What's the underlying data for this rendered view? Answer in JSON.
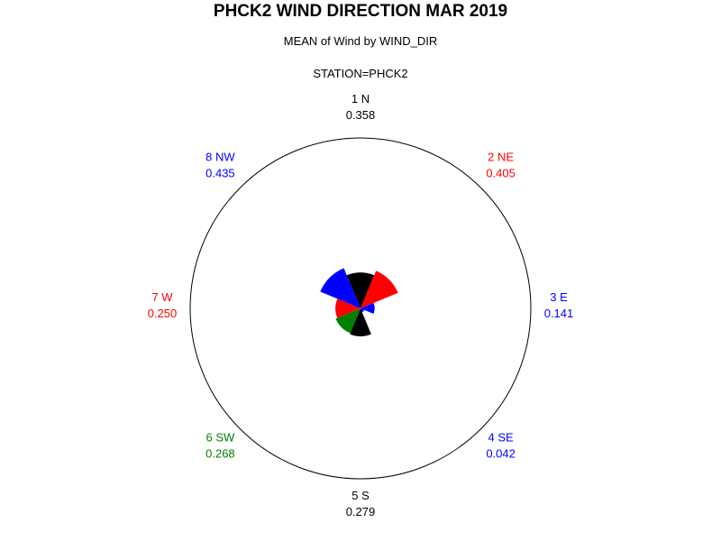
{
  "chart_data": {
    "type": "polar-bar",
    "title": "PHCK2 WIND DIRECTION MAR 2019",
    "subtitle": "MEAN of Wind by WIND_DIR",
    "station_label": "STATION=PHCK2",
    "radial_max": 1.7,
    "sectors": [
      {
        "label": "1 N",
        "value": 0.358,
        "value_text": "0.358",
        "color": "#000000",
        "label_color": "#000000",
        "angle_deg": 0
      },
      {
        "label": "2 NE",
        "value": 0.405,
        "value_text": "0.405",
        "color": "#ff0000",
        "label_color": "#ff0000",
        "angle_deg": 45
      },
      {
        "label": "3 E",
        "value": 0.141,
        "value_text": "0.141",
        "color": "#0000ff",
        "label_color": "#0000ff",
        "angle_deg": 90
      },
      {
        "label": "4 SE",
        "value": 0.042,
        "value_text": "0.042",
        "color": "#0000ff",
        "label_color": "#0000ff",
        "angle_deg": 135
      },
      {
        "label": "5 S",
        "value": 0.279,
        "value_text": "0.279",
        "color": "#000000",
        "label_color": "#000000",
        "angle_deg": 180
      },
      {
        "label": "6 SW",
        "value": 0.268,
        "value_text": "0.268",
        "color": "#008000",
        "label_color": "#008000",
        "angle_deg": 225
      },
      {
        "label": "7 W",
        "value": 0.25,
        "value_text": "0.250",
        "color": "#ff0000",
        "label_color": "#ff0000",
        "angle_deg": 270
      },
      {
        "label": "8 NW",
        "value": 0.435,
        "value_text": "0.435",
        "color": "#0000ff",
        "label_color": "#0000ff",
        "angle_deg": 315
      }
    ]
  }
}
